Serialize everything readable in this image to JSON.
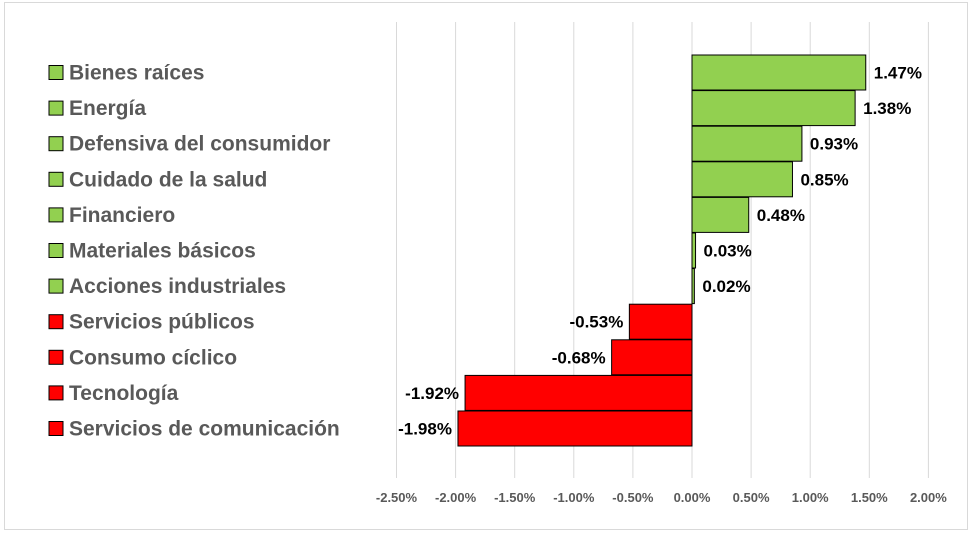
{
  "chart_data": {
    "type": "bar",
    "orientation": "horizontal",
    "categories": [
      "Bienes raíces",
      "Energía",
      "Defensiva del consumidor",
      "Cuidado de la salud",
      "Financiero",
      "Materiales básicos",
      "Acciones industriales",
      "Servicios públicos",
      "Consumo cíclico",
      "Tecnología",
      "Servicios de comunicación"
    ],
    "values": [
      1.47,
      1.38,
      0.93,
      0.85,
      0.48,
      0.03,
      0.02,
      -0.53,
      -0.68,
      -1.92,
      -1.98
    ],
    "data_labels": [
      "1.47%",
      "1.38%",
      "0.93%",
      "0.85%",
      "0.48%",
      "0.03%",
      "0.02%",
      "-0.53%",
      "-0.68%",
      "-1.92%",
      "-1.98%"
    ],
    "x_ticks": [
      -2.5,
      -2.0,
      -1.5,
      -1.0,
      -0.5,
      0.0,
      0.5,
      1.0,
      1.5,
      2.0
    ],
    "x_tick_labels": [
      "-2.50%",
      "-2.00%",
      "-1.50%",
      "-1.00%",
      "-0.50%",
      "0.00%",
      "0.50%",
      "1.00%",
      "1.50%",
      "2.00%"
    ],
    "xlim": [
      -2.5,
      2.0
    ],
    "title": "",
    "xlabel": "",
    "ylabel": "",
    "grid": "vertical",
    "legend": "left, one colored square per category",
    "colors": {
      "positive": "#92d050",
      "negative": "#ff0000",
      "bar_border": "#000000",
      "gridline": "#d9d9d9",
      "label_text": "#595959"
    }
  }
}
